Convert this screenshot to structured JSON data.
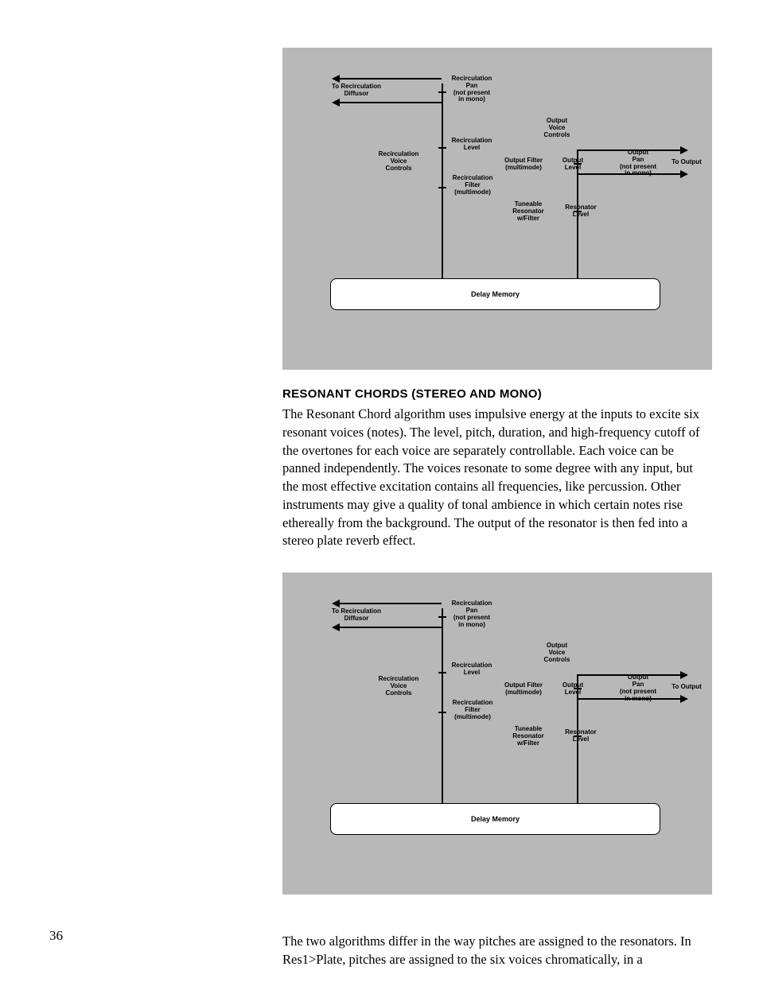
{
  "page_number": "36",
  "section_heading": "RESONANT CHORDS (STEREO AND MONO)",
  "paragraph1": "The Resonant Chord algorithm uses impulsive energy at the inputs to excite six resonant voices (notes). The level, pitch, duration, and high-frequency cutoff of the overtones for each voice are separately controllable. Each voice can be panned independently. The voices resonate to some degree with any input, but the most effective excitation contains all frequencies, like percussion. Other instruments may give a quality of tonal ambience in which certain notes rise ethereally from the background. The output of the resonator is then fed into a stereo plate reverb effect.",
  "paragraph2": "The two algorithms differ in the way pitches are assigned to the resonators. In Res1>Plate, pitches are assigned to the six voices chromatically, in a",
  "diagram": {
    "to_recirc_diffusor": "To Recirculation\nDiffusor",
    "recirc_pan": "Recirculation\nPan\n(not present\nin mono)",
    "recirc_level": "Recirculation\nLevel",
    "recirc_voice_controls": "Recirculation\nVoice\nControls",
    "recirc_filter": "Recirculation\nFilter\n(multimode)",
    "output_voice_controls": "Output\nVoice\nControls",
    "output_filter": "Output Filter\n(multimode)",
    "output_level": "Output\nLevel",
    "output_pan": "Output\nPan\n(not present\nin mono)",
    "to_output": "To Output",
    "tuneable_resonator": "Tuneable\nResonator\nw/Filter",
    "resonator_level": "Resonator\nLevel",
    "delay_memory": "Delay Memory",
    "colors": {
      "bg": "#b8b8b8",
      "box_bg": "#ffffff",
      "line": "#000000"
    }
  }
}
